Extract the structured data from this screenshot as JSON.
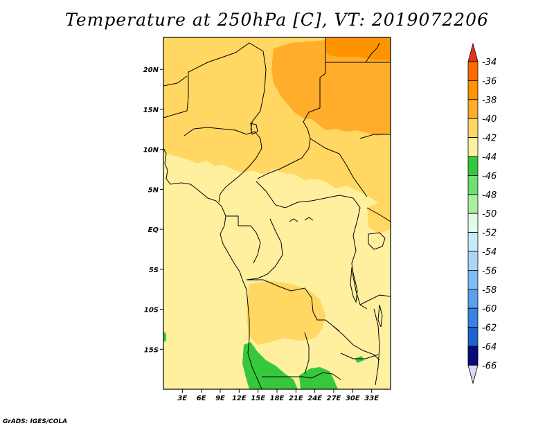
{
  "title": "Temperature at 250hPa [C], VT: 2019072206",
  "footer": "GrADS: IGES/COLA",
  "map": {
    "lon_range": [
      0,
      36
    ],
    "lat_range": [
      -20,
      24
    ],
    "lat_ticks": [
      {
        "value": 20,
        "label": "20N"
      },
      {
        "value": 15,
        "label": "15N"
      },
      {
        "value": 10,
        "label": "10N"
      },
      {
        "value": 5,
        "label": "5N"
      },
      {
        "value": 0,
        "label": "EQ"
      },
      {
        "value": -5,
        "label": "5S"
      },
      {
        "value": -10,
        "label": "10S"
      },
      {
        "value": -15,
        "label": "15S"
      }
    ],
    "lon_ticks": [
      {
        "value": 3,
        "label": "3E"
      },
      {
        "value": 6,
        "label": "6E"
      },
      {
        "value": 9,
        "label": "9E"
      },
      {
        "value": 12,
        "label": "12E"
      },
      {
        "value": 15,
        "label": "15E"
      },
      {
        "value": 18,
        "label": "18E"
      },
      {
        "value": 21,
        "label": "21E"
      },
      {
        "value": 24,
        "label": "24E"
      },
      {
        "value": 27,
        "label": "27E"
      },
      {
        "value": 30,
        "label": "30E"
      },
      {
        "value": 33,
        "label": "33E"
      }
    ]
  },
  "colorbar": {
    "levels": [
      "-34",
      "-36",
      "-38",
      "-40",
      "-42",
      "-44",
      "-46",
      "-48",
      "-50",
      "-52",
      "-54",
      "-56",
      "-58",
      "-60",
      "-62",
      "-64",
      "-66"
    ],
    "colors": [
      "#ff6a00",
      "#ff9400",
      "#ffad2b",
      "#ffd762",
      "#fff0a0",
      "#36c83c",
      "#6de070",
      "#a8f0a0",
      "#dffce6",
      "#c8eafe",
      "#a8d5f8",
      "#7cbcf4",
      "#5aa0ec",
      "#3a82e2",
      "#1e62cf",
      "#0c44b5",
      "#0a0a78"
    ],
    "top_arrow_color": "#e8321e",
    "bottom_arrow_color": "#dcd8f5"
  },
  "colors": {
    "c42": "#fff0a0",
    "c40": "#ffd762",
    "c38": "#ffad2b",
    "c36": "#ff9400",
    "c44": "#36c83c"
  }
}
